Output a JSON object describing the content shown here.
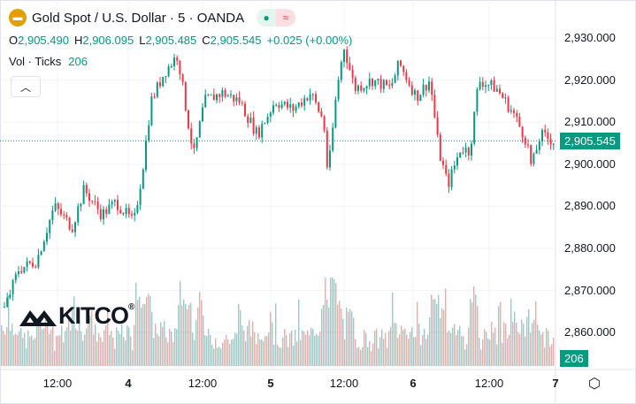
{
  "header": {
    "title": "Gold Spot / U.S. Dollar · 5 · OANDA",
    "market_open_icon": "dot-icon",
    "wave_icon": "≈"
  },
  "ohlc": {
    "o_label": "O",
    "o": "2,905.490",
    "h_label": "H",
    "h": "2,906.095",
    "l_label": "L",
    "l": "2,905.485",
    "c_label": "C",
    "c": "2,905.545",
    "change": "+0.025 (+0.00%)"
  },
  "volume": {
    "label": "Vol · Ticks",
    "value": "206"
  },
  "watermark": "KITCO",
  "price_axis": {
    "ticks": [
      "2,930.000",
      "2,920.000",
      "2,910.000",
      "2,900.000",
      "2,890.000",
      "2,880.000",
      "2,870.000",
      "2,860.000"
    ],
    "last_price": "2,905.545",
    "last_volume": "206"
  },
  "time_axis": {
    "ticks": [
      "12:00",
      "4",
      "12:00",
      "5",
      "12:00",
      "6",
      "12:00",
      "7"
    ]
  },
  "colors": {
    "up": "#089981",
    "down": "#f23645",
    "accent": "#089981"
  },
  "chart_data": {
    "type": "candlestick",
    "title": "Gold Spot / U.S. Dollar · 5 · OANDA",
    "ylim": [
      2853,
      2936
    ],
    "x_unit": "hours from left edge",
    "price_path": [
      [
        0.7,
        2866
      ],
      [
        3,
        2875
      ],
      [
        6,
        2877
      ],
      [
        9,
        2890
      ],
      [
        12,
        2885
      ],
      [
        14,
        2894
      ],
      [
        17,
        2888
      ],
      [
        19.4,
        2891
      ],
      [
        22.4,
        2886
      ],
      [
        23.8,
        2898
      ],
      [
        25.3,
        2915
      ],
      [
        27.6,
        2922
      ],
      [
        29.8,
        2926
      ],
      [
        31.3,
        2912
      ],
      [
        32.5,
        2902
      ],
      [
        34.3,
        2915
      ],
      [
        37.3,
        2917
      ],
      [
        40.2,
        2915
      ],
      [
        43.2,
        2907
      ],
      [
        46.2,
        2915
      ],
      [
        49.2,
        2913
      ],
      [
        52.2,
        2917
      ],
      [
        54.4,
        2910
      ],
      [
        55.1,
        2897
      ],
      [
        56.6,
        2918
      ],
      [
        57.8,
        2928
      ],
      [
        59.6,
        2918
      ],
      [
        62.6,
        2920
      ],
      [
        65.6,
        2918
      ],
      [
        67.1,
        2924
      ],
      [
        70,
        2916
      ],
      [
        72.3,
        2920
      ],
      [
        73.8,
        2903
      ],
      [
        75.3,
        2895
      ],
      [
        77.5,
        2904
      ],
      [
        79,
        2903
      ],
      [
        80.5,
        2920
      ],
      [
        83.5,
        2918
      ],
      [
        86.4,
        2912
      ],
      [
        88.7,
        2905
      ],
      [
        89.4,
        2899
      ],
      [
        90.9,
        2907
      ],
      [
        93.1,
        2905.5
      ]
    ],
    "volume_range": [
      0,
      206
    ]
  }
}
